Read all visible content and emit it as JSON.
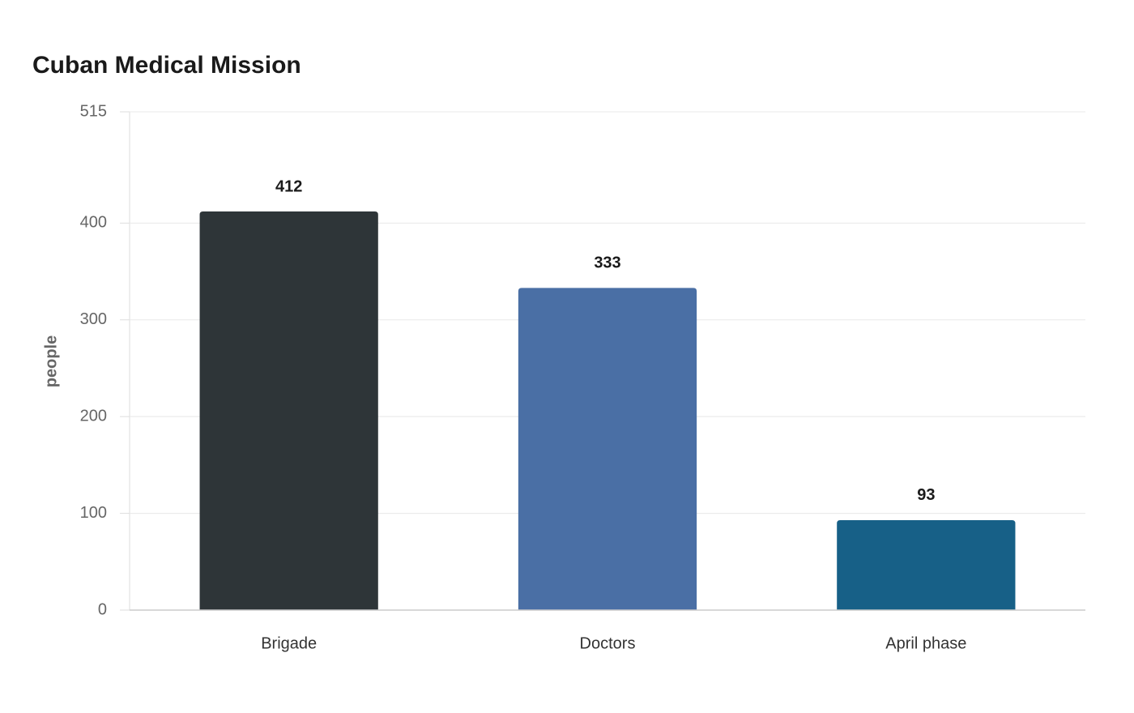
{
  "chart_data": {
    "type": "bar",
    "title": "Cuban Medical Mission",
    "y_label": "people",
    "categories": [
      "Brigade",
      "Doctors",
      "April phase"
    ],
    "values": [
      412,
      333,
      93
    ],
    "colors": [
      "#2e3538",
      "#4a6fa5",
      "#176087"
    ],
    "ylim": [
      0,
      515
    ],
    "yticks": [
      0,
      100,
      200,
      300,
      400,
      515
    ],
    "grid": true
  }
}
